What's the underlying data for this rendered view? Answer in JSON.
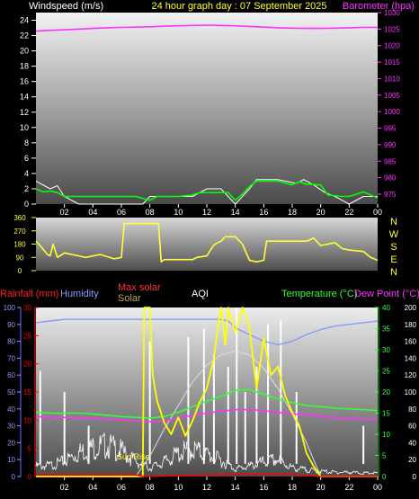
{
  "colors": {
    "background": "#000000",
    "wind": "#00ff00",
    "gust": "#ffffff",
    "barometer": "#ff33ff",
    "direction": "#ffff33",
    "rain": "#ff0000",
    "humidity": "#8899ff",
    "max_solar": "#dddddd",
    "solar": "#ffff00",
    "aqi": "#ffffff",
    "temperature": "#33ff33",
    "dewpoint": "#ff33ff",
    "label_solar_title": "#bbaa55",
    "label_max_solar_title": "#ff3333"
  },
  "chart_data": [
    {
      "type": "line",
      "title": "24 hour graph day : 07 September 2025",
      "left_axis_label": "Windspeed (m/s)",
      "right_axis_label": "Barometer (hpa)",
      "left_ylim": [
        0,
        25
      ],
      "left_ticks": [
        "0",
        "2",
        "4",
        "6",
        "8",
        "10",
        "12",
        "14",
        "16",
        "18",
        "20",
        "22",
        "24"
      ],
      "right_ylim": [
        972,
        1030
      ],
      "right_ticks": [
        "975",
        "980",
        "985",
        "990",
        "995",
        "1000",
        "1005",
        "1010",
        "1015",
        "1020",
        "1025",
        "1030"
      ],
      "x_ticks": [
        "02",
        "04",
        "06",
        "08",
        "10",
        "12",
        "14",
        "16",
        "18",
        "20",
        "22",
        "00"
      ],
      "grid": false,
      "series": [
        {
          "key": "gust",
          "x": [
            0,
            1,
            1.5,
            2,
            3,
            7.5,
            8,
            9,
            10,
            11,
            12,
            13,
            14,
            15,
            15.5,
            17,
            18.3,
            18.8,
            19.5,
            20.3,
            21,
            22,
            23,
            24
          ],
          "y": [
            3,
            2,
            2.4,
            1,
            0,
            0,
            1,
            1,
            1,
            1,
            2,
            2,
            0,
            2,
            3.2,
            3.2,
            2.7,
            3.2,
            2.5,
            1.5,
            1,
            0,
            1,
            1
          ]
        },
        {
          "key": "wind",
          "x": [
            0,
            0.5,
            1,
            1.5,
            2,
            2.5,
            3,
            5,
            6,
            7,
            8,
            8.5,
            10,
            11,
            11.5,
            12,
            13.5,
            14,
            14.5,
            15,
            15.5,
            17,
            18,
            18.5,
            19,
            20,
            20.5,
            21.5,
            22,
            23,
            24
          ],
          "y": [
            2,
            1.6,
            1.7,
            1.5,
            1,
            1,
            1,
            1,
            1,
            1,
            0.5,
            1,
            1,
            1.2,
            1.5,
            1.5,
            1.5,
            0.5,
            1.3,
            2.3,
            3,
            3,
            2.5,
            2.9,
            2.6,
            2.5,
            1.2,
            1,
            1,
            1.6,
            0.8
          ]
        },
        {
          "key": "barometer",
          "x": [
            0,
            1,
            2,
            3,
            4,
            5,
            6,
            7,
            8,
            9,
            10,
            11,
            12,
            13,
            14,
            15,
            16,
            17,
            18,
            19,
            20,
            21,
            22,
            23,
            24
          ],
          "y": [
            1024.4,
            1024.6,
            1024.8,
            1025.0,
            1025.2,
            1025.4,
            1025.5,
            1025.6,
            1025.7,
            1025.9,
            1026.0,
            1026.1,
            1026.2,
            1026.1,
            1026.0,
            1025.8,
            1025.6,
            1025.4,
            1025.3,
            1025.2,
            1025.2,
            1025.3,
            1025.4,
            1025.5,
            1025.5
          ]
        }
      ]
    },
    {
      "type": "line",
      "left_ylim": [
        0,
        360
      ],
      "left_ticks": [
        "0",
        "90",
        "180",
        "270",
        "360"
      ],
      "right_labels": [
        "N",
        "W",
        "S",
        "E",
        "N"
      ],
      "series": [
        {
          "key": "direction",
          "x": [
            0,
            0.2,
            0.8,
            1.0,
            1.2,
            1.5,
            2,
            3,
            3.5,
            4.5,
            5.5,
            6,
            6.2,
            6.3,
            8.6,
            8.8,
            9,
            11,
            11.3,
            12,
            12.5,
            13,
            13.3,
            14,
            14.5,
            15,
            15.5,
            16,
            16.2,
            19,
            19.5,
            20,
            21,
            21.5,
            22,
            23,
            23.5,
            24
          ],
          "y": [
            200,
            180,
            110,
            100,
            180,
            90,
            120,
            100,
            90,
            110,
            80,
            90,
            320,
            320,
            320,
            60,
            75,
            75,
            90,
            100,
            175,
            200,
            230,
            230,
            180,
            70,
            60,
            70,
            200,
            200,
            220,
            170,
            190,
            150,
            140,
            130,
            90,
            70
          ]
        }
      ]
    },
    {
      "type": "line",
      "legend": [
        "Rainfall (mm)",
        "Humidity",
        "Max solar",
        "Solar",
        "AQI",
        "Temperature (°C)",
        "Dew Point (°C)"
      ],
      "left_humidity_ylim": [
        0,
        100
      ],
      "left_humidity_ticks": [
        "0",
        "10",
        "20",
        "30",
        "40",
        "50",
        "60",
        "70",
        "80",
        "90",
        "100"
      ],
      "left_rain_ylim": [
        0,
        30
      ],
      "left_rain_ticks": [
        "0",
        "5",
        "10",
        "15",
        "20",
        "25",
        "30"
      ],
      "right_temp_ylim": [
        0,
        40
      ],
      "right_temp_ticks": [
        "0",
        "5",
        "10",
        "15",
        "20",
        "25",
        "30",
        "35",
        "40"
      ],
      "right_solar_ylim": [
        0,
        1000
      ],
      "right_aqi_ylim": [
        0,
        200
      ],
      "right_aqi_ticks": [
        "0",
        "20",
        "40",
        "60",
        "80",
        "100",
        "120",
        "140",
        "160",
        "180",
        "200"
      ],
      "x_ticks": [
        "02",
        "04",
        "06",
        "08",
        "10",
        "12",
        "14",
        "16",
        "18",
        "20",
        "22",
        "00"
      ],
      "annotation": "Sun Rise",
      "series": [
        {
          "key": "humidity",
          "x": [
            0,
            1,
            2,
            3,
            4,
            5,
            6,
            7,
            8,
            9,
            10,
            11,
            12,
            13,
            13.5,
            14,
            15,
            16,
            17,
            18,
            19,
            20,
            21,
            22,
            23,
            24
          ],
          "y": [
            91,
            92,
            93,
            93,
            93,
            93,
            93,
            93,
            93,
            93,
            93,
            93,
            93,
            93,
            92,
            88,
            84,
            80,
            78,
            80,
            84,
            87,
            89,
            90,
            91,
            92
          ]
        },
        {
          "key": "max_solar",
          "x": [
            7,
            8,
            9,
            10,
            11,
            12,
            13,
            14,
            15,
            16,
            17,
            18,
            19,
            20
          ],
          "y": [
            0,
            120,
            280,
            420,
            560,
            660,
            720,
            740,
            720,
            640,
            520,
            370,
            200,
            0
          ]
        },
        {
          "key": "solar",
          "x": [
            0,
            7.5,
            7.6,
            8.0,
            8.2,
            8.5,
            9,
            9.5,
            10,
            10.5,
            11,
            11.5,
            12,
            12.5,
            12.8,
            13,
            13.3,
            13.5,
            14,
            14.5,
            15,
            15.5,
            16,
            16.5,
            17,
            17.5,
            18,
            18.5,
            19,
            19.5,
            20,
            24
          ],
          "y": [
            0,
            0,
            1000,
            1000,
            600,
            450,
            320,
            250,
            350,
            240,
            330,
            440,
            520,
            700,
            900,
            1000,
            780,
            1000,
            850,
            1000,
            880,
            520,
            820,
            600,
            650,
            480,
            380,
            300,
            140,
            60,
            0,
            0
          ]
        },
        {
          "key": "aqi",
          "x": [
            0,
            1,
            2,
            3,
            4,
            5,
            6,
            7,
            8,
            9,
            10,
            11,
            12,
            13,
            14,
            15,
            16,
            17,
            18,
            19,
            20,
            21,
            22,
            23,
            24
          ],
          "y": [
            12,
            13,
            18,
            28,
            34,
            37,
            30,
            18,
            10,
            17,
            27,
            32,
            26,
            19,
            9,
            12,
            17,
            20,
            10,
            8,
            6,
            5,
            5,
            4,
            4
          ]
        },
        {
          "key": "aqi_spikes",
          "x": [
            0.3,
            2,
            3.7,
            8,
            10.7,
            11.8,
            12.5,
            13.5,
            14.1,
            14.7,
            15.5,
            16.3,
            17.2,
            18.3,
            23
          ],
          "y": [
            125,
            100,
            60,
            160,
            165,
            175,
            145,
            130,
            200,
            100,
            130,
            180,
            185,
            100,
            60
          ]
        },
        {
          "key": "temperature",
          "x": [
            0,
            1,
            2,
            3,
            4,
            5,
            6,
            7,
            8,
            9,
            10,
            11,
            12,
            13,
            14,
            15,
            16,
            17,
            18,
            19,
            20,
            21,
            22,
            23,
            24
          ],
          "y": [
            15.2,
            15.0,
            15.0,
            15.0,
            14.8,
            14.5,
            14.2,
            14.0,
            13.8,
            14.2,
            15.2,
            16.5,
            17.8,
            19.0,
            20.4,
            20.6,
            19.5,
            18.3,
            17.5,
            16.8,
            16.5,
            16.2,
            16.0,
            15.8,
            15.6
          ]
        },
        {
          "key": "dewpoint",
          "x": [
            0,
            1,
            2,
            3,
            4,
            5,
            6,
            7,
            8,
            9,
            10,
            11,
            12,
            13,
            14,
            15,
            16,
            17,
            18,
            19,
            20,
            21,
            22,
            23,
            24
          ],
          "y": [
            14.2,
            14.0,
            14.0,
            13.9,
            13.8,
            13.6,
            13.4,
            13.2,
            13.0,
            13.2,
            13.8,
            14.5,
            15.0,
            15.5,
            15.8,
            15.8,
            15.6,
            15.2,
            14.8,
            14.6,
            14.2,
            14.0,
            13.8,
            13.6,
            13.4
          ]
        },
        {
          "key": "rain",
          "x": [
            0,
            7,
            7.5,
            14,
            18,
            20,
            24
          ],
          "y": [
            0.3,
            0.3,
            0,
            0.4,
            0.4,
            0,
            0
          ]
        }
      ]
    }
  ]
}
